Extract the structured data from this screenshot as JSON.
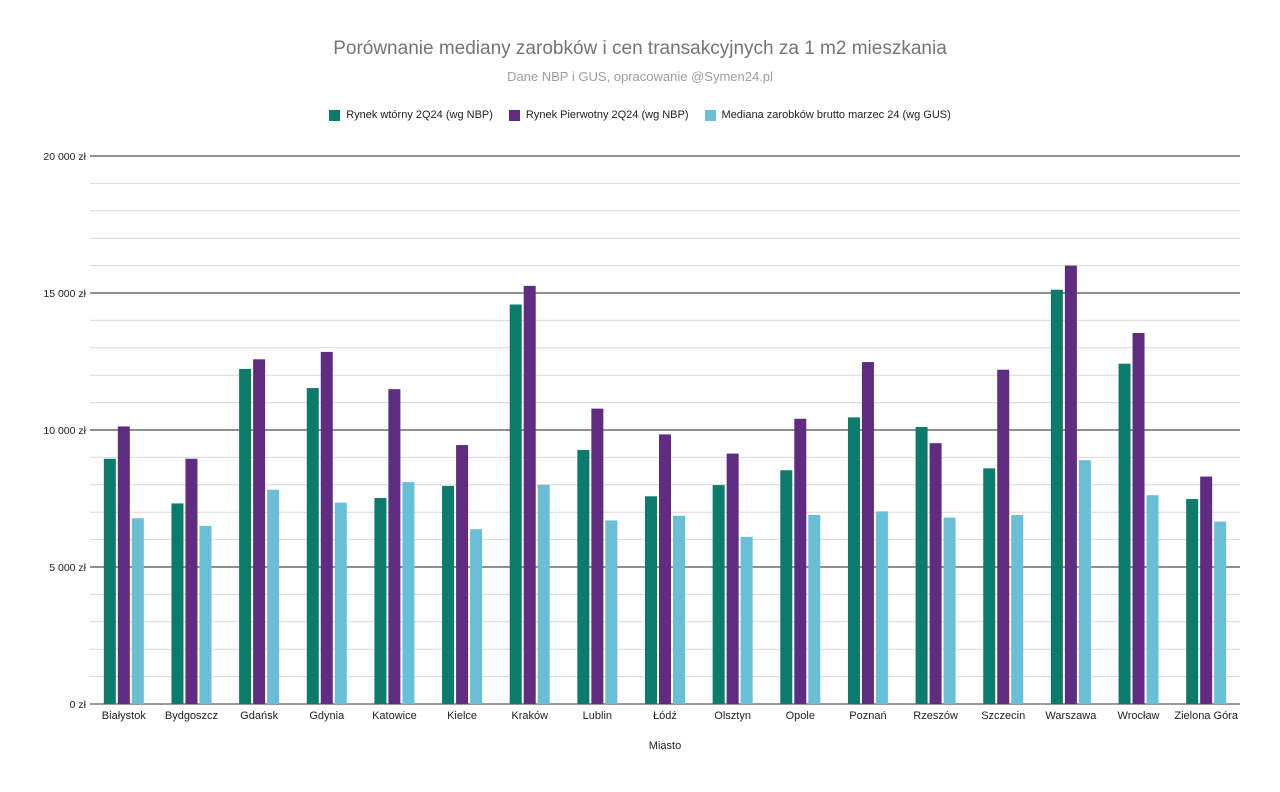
{
  "chart_data": {
    "type": "bar",
    "title": "Porównanie mediany zarobków i cen transakcyjnych za 1 m2 mieszkania",
    "subtitle": "Dane NBP i GUS, opracowanie @Symen24.pl",
    "xlabel": "Miasto",
    "ylabel": "",
    "ylim": [
      0,
      20000
    ],
    "yticks": [
      0,
      5000,
      10000,
      15000,
      20000
    ],
    "ytick_labels": [
      "0 zł",
      "5 000 zł",
      "10 000 zł",
      "15 000 zł",
      "20 000 zł"
    ],
    "grid": true,
    "legend_position": "top-center",
    "categories": [
      "Białystok",
      "Bydgoszcz",
      "Gdańsk",
      "Gdynia",
      "Katowice",
      "Kielce",
      "Kraków",
      "Lublin",
      "Łódź",
      "Olsztyn",
      "Opole",
      "Poznań",
      "Rzeszów",
      "Szczecin",
      "Warszawa",
      "Wrocław",
      "Zielona Góra"
    ],
    "series": [
      {
        "name": "Rynek wtórny 2Q24 (wg NBP)",
        "color": "#0b7b6c",
        "values": [
          8950,
          7320,
          12230,
          11530,
          7520,
          7960,
          14580,
          9270,
          7580,
          7990,
          8530,
          10460,
          10110,
          8600,
          15120,
          12420,
          7480
        ]
      },
      {
        "name": "Rynek Pierwotny 2Q24 (wg NBP)",
        "color": "#5f2c82",
        "values": [
          10130,
          8950,
          12580,
          12850,
          11490,
          9450,
          15260,
          10780,
          9840,
          9140,
          10410,
          12480,
          9520,
          12200,
          16000,
          13540,
          8300
        ]
      },
      {
        "name": "Mediana zarobków brutto marzec 24 (wg GUS)",
        "color": "#69c0d6",
        "values": [
          6780,
          6500,
          7820,
          7350,
          8100,
          6380,
          8000,
          6700,
          6870,
          6100,
          6900,
          7030,
          6800,
          6900,
          8900,
          7620,
          6660
        ]
      }
    ]
  }
}
